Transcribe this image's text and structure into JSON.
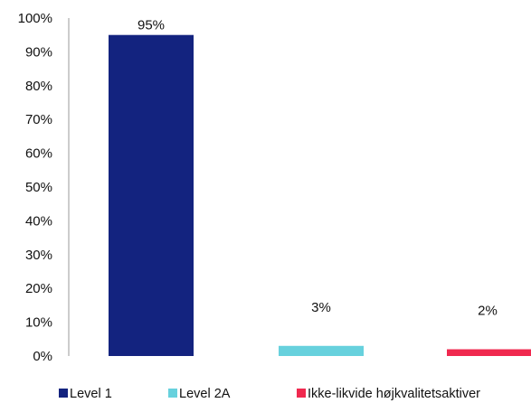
{
  "chart_data": {
    "type": "bar",
    "categories": [
      "Level 1",
      "Level 2A",
      "Ikke-likvide højkvalitetsaktiver"
    ],
    "values": [
      95,
      3,
      2
    ],
    "data_labels": [
      "95%",
      "3%",
      "2%"
    ],
    "ylim": [
      0,
      100
    ],
    "yticks": [
      "0%",
      "10%",
      "20%",
      "30%",
      "40%",
      "50%",
      "60%",
      "70%",
      "80%",
      "90%",
      "100%"
    ],
    "grid": false,
    "legend": "bottom",
    "colors": [
      "#13237f",
      "#67d1dd",
      "#f0294f"
    ],
    "xlabel": "",
    "ylabel": ""
  }
}
